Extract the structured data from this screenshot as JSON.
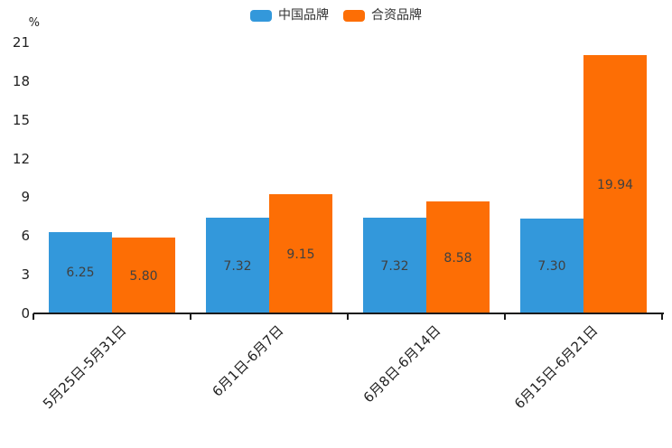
{
  "chart_data": {
    "type": "bar",
    "title": "",
    "unit_label": "%",
    "categories": [
      "5月25日-5月31日",
      "6月1日-6月7日",
      "6月8日-6月14日",
      "6月15日-6月21日"
    ],
    "series": [
      {
        "name": "中国品牌",
        "color": "#3398db",
        "values": [
          6.25,
          7.32,
          7.32,
          7.3
        ]
      },
      {
        "name": "合资品牌",
        "color": "#fd6e05",
        "values": [
          5.8,
          9.15,
          8.58,
          19.94
        ]
      }
    ],
    "value_label_decimals": 2,
    "ylim": [
      0,
      21
    ],
    "yticks": [
      0,
      3,
      6,
      9,
      12,
      15,
      18,
      21
    ],
    "legend_position": "top",
    "grid": false,
    "bar_gap_between_series": 0,
    "colors": {
      "bar_value_text": "#404040",
      "axis_text": "#222222",
      "axis_line": "#1a1a1a"
    }
  }
}
